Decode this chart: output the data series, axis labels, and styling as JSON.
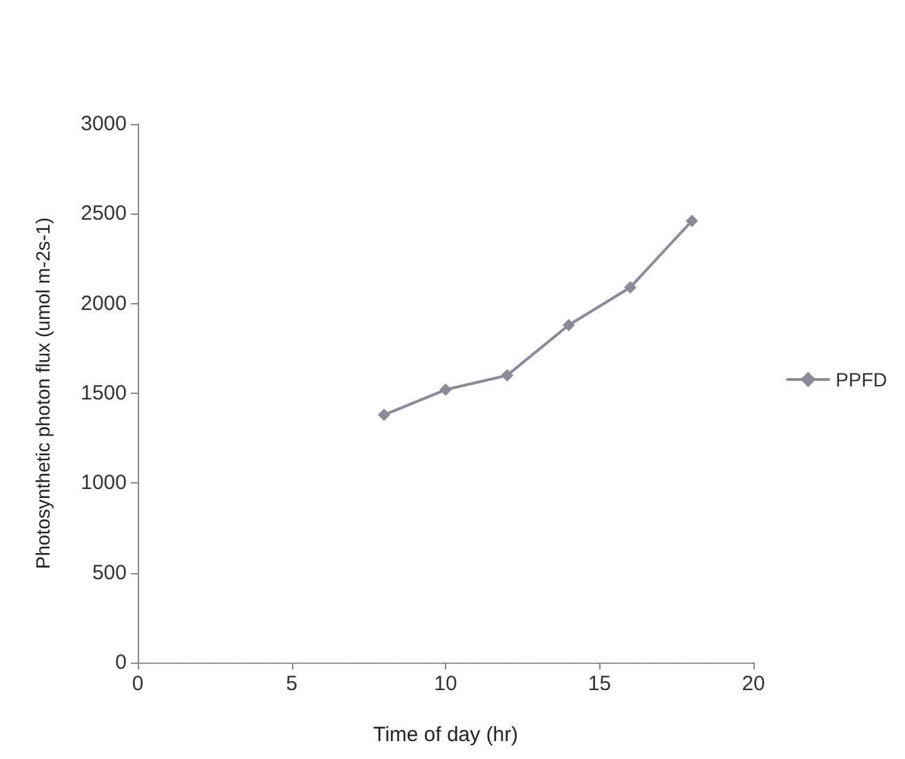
{
  "chart_data": {
    "type": "line",
    "xlabel": "Time of day (hr)",
    "ylabel": "Photosynthetic photon flux (umol m-2s-1)",
    "x": [
      8,
      10,
      12,
      14,
      16,
      18
    ],
    "series": [
      {
        "name": "PPFD",
        "color": "#8c8a98",
        "values": [
          1380,
          1520,
          1600,
          1880,
          2090,
          2460
        ]
      }
    ],
    "xlim": [
      0,
      20
    ],
    "xticks": [
      0,
      5,
      10,
      15,
      20
    ],
    "ylim": [
      0,
      3000
    ],
    "yticks": [
      0,
      500,
      1000,
      1500,
      2000,
      2500,
      3000
    ],
    "grid": false,
    "legend": "right",
    "marker": "diamond",
    "line_style": "solid"
  }
}
